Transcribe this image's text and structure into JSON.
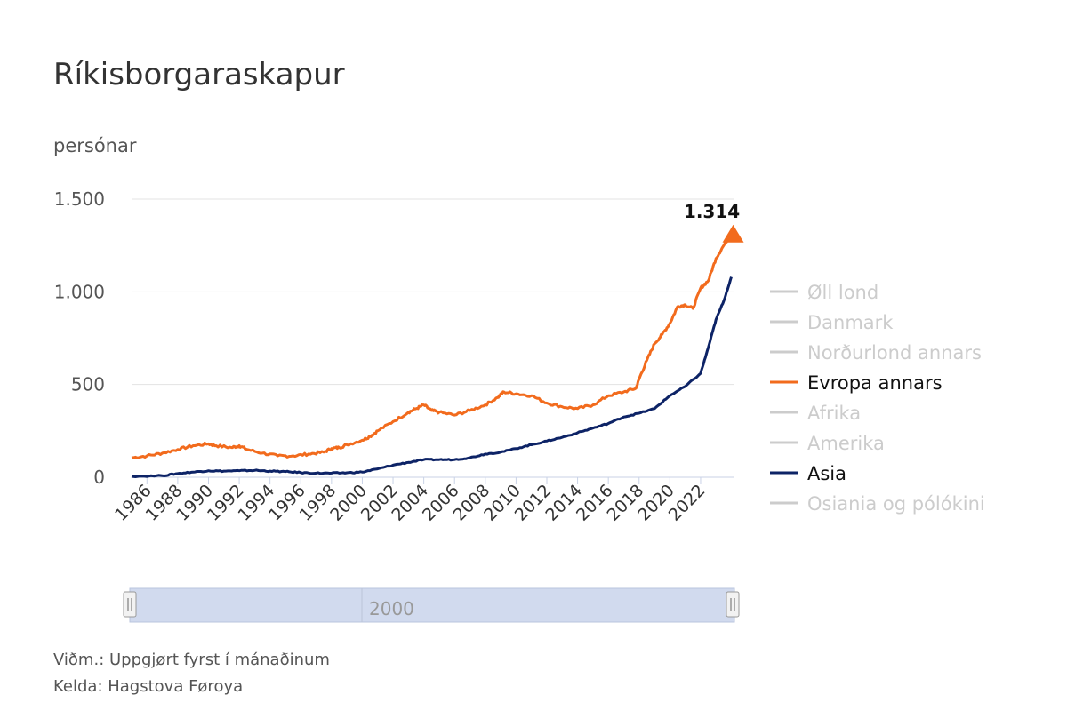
{
  "chart_data": {
    "type": "line",
    "title": "Ríkisborgaraskapur",
    "ylabel": "persónar",
    "xlabel": "",
    "ylim": [
      0,
      1500
    ],
    "xlim": [
      1985.0,
      2024.2
    ],
    "yticks": [
      0,
      500,
      1000,
      1500
    ],
    "ytick_labels": [
      "0",
      "500",
      "1.000",
      "1.500"
    ],
    "xticks": [
      "1986",
      "1988",
      "1990",
      "1992",
      "1994",
      "1996",
      "1998",
      "2000",
      "2002",
      "2004",
      "2006",
      "2008",
      "2010",
      "2012",
      "2014",
      "2016",
      "2018",
      "2020",
      "2022"
    ],
    "grid": "horizontal",
    "legend_position": "right",
    "legend": [
      {
        "name": "Øll lond",
        "active": false
      },
      {
        "name": "Danmark",
        "active": false
      },
      {
        "name": "Norðurlond annars",
        "active": false
      },
      {
        "name": "Evropa annars",
        "active": true,
        "color": "#f26b1d"
      },
      {
        "name": "Afrika",
        "active": false
      },
      {
        "name": "Amerika",
        "active": false
      },
      {
        "name": "Asia",
        "active": true,
        "color": "#0d2366"
      },
      {
        "name": "Osiania og pólókini",
        "active": false
      }
    ],
    "series": [
      {
        "name": "Evropa annars",
        "color": "#f26b1d",
        "points": [
          [
            1985.0,
            105
          ],
          [
            1986.0,
            115
          ],
          [
            1987.0,
            130
          ],
          [
            1988.0,
            150
          ],
          [
            1989.0,
            170
          ],
          [
            1990.0,
            180
          ],
          [
            1990.5,
            170
          ],
          [
            1991.5,
            160
          ],
          [
            1992.0,
            170
          ],
          [
            1992.5,
            150
          ],
          [
            1993.5,
            130
          ],
          [
            1994.5,
            115
          ],
          [
            1995.5,
            115
          ],
          [
            1996.5,
            125
          ],
          [
            1997.5,
            135
          ],
          [
            1998.0,
            155
          ],
          [
            1998.5,
            160
          ],
          [
            1999.0,
            175
          ],
          [
            2000.0,
            200
          ],
          [
            2000.5,
            220
          ],
          [
            2001.0,
            250
          ],
          [
            2002.0,
            300
          ],
          [
            2003.0,
            350
          ],
          [
            2003.5,
            370
          ],
          [
            2004.0,
            390
          ],
          [
            2004.5,
            360
          ],
          [
            2005.0,
            350
          ],
          [
            2006.0,
            335
          ],
          [
            2007.0,
            360
          ],
          [
            2008.0,
            390
          ],
          [
            2008.8,
            430
          ],
          [
            2009.2,
            460
          ],
          [
            2010.0,
            450
          ],
          [
            2011.0,
            440
          ],
          [
            2012.0,
            400
          ],
          [
            2013.0,
            380
          ],
          [
            2014.0,
            370
          ],
          [
            2015.0,
            390
          ],
          [
            2016.0,
            440
          ],
          [
            2017.0,
            460
          ],
          [
            2017.8,
            480
          ],
          [
            2018.0,
            530
          ],
          [
            2018.5,
            630
          ],
          [
            2019.0,
            720
          ],
          [
            2019.5,
            770
          ],
          [
            2020.0,
            830
          ],
          [
            2020.5,
            920
          ],
          [
            2021.0,
            930
          ],
          [
            2021.5,
            910
          ],
          [
            2022.0,
            1020
          ],
          [
            2022.5,
            1060
          ],
          [
            2023.0,
            1180
          ],
          [
            2023.5,
            1250
          ],
          [
            2024.0,
            1314
          ]
        ],
        "last_value_label": "1.314"
      },
      {
        "name": "Asia",
        "color": "#0d2366",
        "points": [
          [
            1985.0,
            5
          ],
          [
            1987.0,
            8
          ],
          [
            1988.0,
            20
          ],
          [
            1989.0,
            28
          ],
          [
            1990.0,
            35
          ],
          [
            1991.0,
            33
          ],
          [
            1992.0,
            35
          ],
          [
            1993.0,
            37
          ],
          [
            1994.0,
            33
          ],
          [
            1995.0,
            30
          ],
          [
            1996.0,
            25
          ],
          [
            1997.0,
            22
          ],
          [
            1998.0,
            22
          ],
          [
            1999.0,
            24
          ],
          [
            2000.0,
            28
          ],
          [
            2001.0,
            45
          ],
          [
            2002.0,
            65
          ],
          [
            2003.0,
            80
          ],
          [
            2004.0,
            95
          ],
          [
            2005.0,
            95
          ],
          [
            2006.0,
            95
          ],
          [
            2007.0,
            105
          ],
          [
            2008.0,
            125
          ],
          [
            2009.0,
            135
          ],
          [
            2010.0,
            155
          ],
          [
            2011.0,
            175
          ],
          [
            2012.0,
            195
          ],
          [
            2013.0,
            215
          ],
          [
            2014.0,
            240
          ],
          [
            2015.0,
            265
          ],
          [
            2016.0,
            290
          ],
          [
            2017.0,
            325
          ],
          [
            2018.0,
            345
          ],
          [
            2019.0,
            370
          ],
          [
            2020.0,
            440
          ],
          [
            2021.0,
            490
          ],
          [
            2022.0,
            560
          ],
          [
            2022.5,
            700
          ],
          [
            2023.0,
            850
          ],
          [
            2023.5,
            950
          ],
          [
            2024.0,
            1080
          ]
        ]
      }
    ],
    "navigator": {
      "label": "2000"
    },
    "notes": [
      "Viðm.: Uppgjørt fyrst í mánaðinum",
      "Kelda: Hagstova Føroya"
    ]
  }
}
